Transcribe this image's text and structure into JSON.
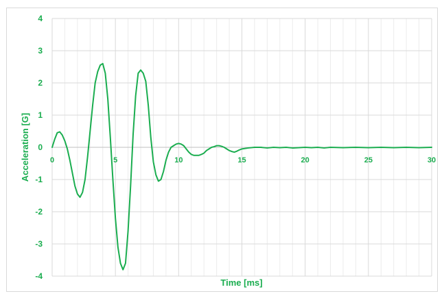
{
  "colors": {
    "series": "#1aad4f",
    "tick_text": "#1aad4f",
    "major_grid": "#d9d9d9",
    "minor_grid": "#ececec",
    "zero_axis": "#bfbfbf",
    "background": "#ffffff"
  },
  "chart_data": {
    "type": "line",
    "title": "",
    "xlabel": "Time [ms]",
    "ylabel": "Acceleration [G]",
    "xlim": [
      0,
      30
    ],
    "ylim": [
      -4,
      4
    ],
    "x_ticks": [
      0,
      5,
      10,
      15,
      20,
      25,
      30
    ],
    "y_ticks": [
      4,
      3,
      2,
      1,
      0,
      -1,
      -2,
      -3,
      -4
    ],
    "x_minor_step": 1,
    "grid": true,
    "legend": "none",
    "series": [
      {
        "x": [
          0,
          0.2,
          0.4,
          0.6,
          0.8,
          1.0,
          1.2,
          1.4,
          1.6,
          1.8,
          2.0,
          2.2,
          2.4,
          2.6,
          2.8,
          3.0,
          3.2,
          3.4,
          3.6,
          3.8,
          4.0,
          4.2,
          4.4,
          4.6,
          4.8,
          5.0,
          5.2,
          5.4,
          5.6,
          5.8,
          6.0,
          6.2,
          6.4,
          6.6,
          6.8,
          7.0,
          7.2,
          7.4,
          7.6,
          7.8,
          8.0,
          8.2,
          8.4,
          8.6,
          8.8,
          9.0,
          9.2,
          9.4,
          9.6,
          9.8,
          10.0,
          10.2,
          10.4,
          10.6,
          10.8,
          11.0,
          11.2,
          11.4,
          11.6,
          11.8,
          12.0,
          12.2,
          12.4,
          12.6,
          12.8,
          13.0,
          13.2,
          13.4,
          13.6,
          13.8,
          14.0,
          14.2,
          14.4,
          14.6,
          14.8,
          15.0,
          15.5,
          16.0,
          16.5,
          17.0,
          17.5,
          18.0,
          18.5,
          19.0,
          19.5,
          20.0,
          20.5,
          21.0,
          21.5,
          22.0,
          23.0,
          24.0,
          25.0,
          26.0,
          27.0,
          28.0,
          29.0,
          30.0
        ],
        "y": [
          0.0,
          0.25,
          0.45,
          0.48,
          0.38,
          0.2,
          -0.05,
          -0.4,
          -0.8,
          -1.2,
          -1.45,
          -1.55,
          -1.4,
          -1.0,
          -0.3,
          0.5,
          1.3,
          2.0,
          2.35,
          2.55,
          2.6,
          2.3,
          1.5,
          0.3,
          -1.0,
          -2.2,
          -3.1,
          -3.6,
          -3.8,
          -3.6,
          -2.6,
          -1.2,
          0.4,
          1.6,
          2.3,
          2.4,
          2.3,
          2.05,
          1.3,
          0.3,
          -0.45,
          -0.85,
          -1.05,
          -1.0,
          -0.75,
          -0.4,
          -0.15,
          0.0,
          0.05,
          0.1,
          0.12,
          0.1,
          0.05,
          -0.05,
          -0.15,
          -0.22,
          -0.25,
          -0.25,
          -0.25,
          -0.22,
          -0.18,
          -0.1,
          -0.05,
          0.0,
          0.02,
          0.05,
          0.05,
          0.03,
          0.0,
          -0.05,
          -0.1,
          -0.13,
          -0.15,
          -0.12,
          -0.08,
          -0.05,
          -0.02,
          0.0,
          0.0,
          -0.02,
          0.0,
          -0.01,
          0.0,
          -0.02,
          -0.01,
          0.0,
          -0.01,
          0.0,
          -0.02,
          0.0,
          -0.01,
          0.0,
          -0.01,
          0.0,
          -0.01,
          0.0,
          -0.01,
          0.0
        ]
      }
    ]
  }
}
